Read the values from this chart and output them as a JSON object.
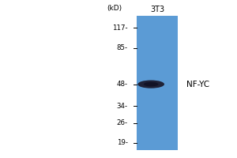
{
  "kd_label": "(kD)",
  "lane_label": "3T3",
  "band_label": "NF-YC",
  "markers": [
    117,
    85,
    48,
    34,
    26,
    19
  ],
  "band_at": 48,
  "bg_color": "#ffffff",
  "lane_blue": "#5b9bd5",
  "band_dark": "#1c1c2e",
  "fig_width": 3.0,
  "fig_height": 2.0,
  "dpi": 100,
  "log_min": 1.23,
  "log_max": 2.15
}
